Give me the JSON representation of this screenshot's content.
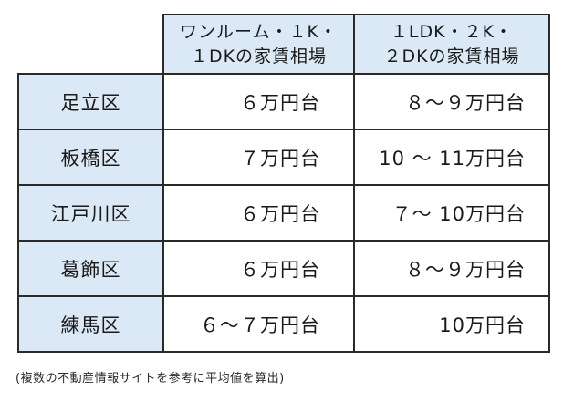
{
  "table": {
    "headers": [
      {
        "line1": "ワンルーム・１K・",
        "line2": "１DKの家賃相場"
      },
      {
        "line1": "１LDK・２K・",
        "line2": "２DKの家賃相場"
      }
    ],
    "rows": [
      {
        "ward": "足立区",
        "c1": "６万円台",
        "c2": "８～９万円台"
      },
      {
        "ward": "板橋区",
        "c1": "７万円台",
        "c2": "10 ～ 11万円台"
      },
      {
        "ward": "江戸川区",
        "c1": "６万円台",
        "c2": "７～ 10万円台"
      },
      {
        "ward": "葛飾区",
        "c1": "６万円台",
        "c2": "８～９万円台"
      },
      {
        "ward": "練馬区",
        "c1": "６～７万円台",
        "c2": "10万円台"
      }
    ]
  },
  "footnote": "(複数の不動産情報サイトを参考に平均値を算出)",
  "colors": {
    "header_bg": "#dbe9f6",
    "border": "#2a2a2a"
  }
}
